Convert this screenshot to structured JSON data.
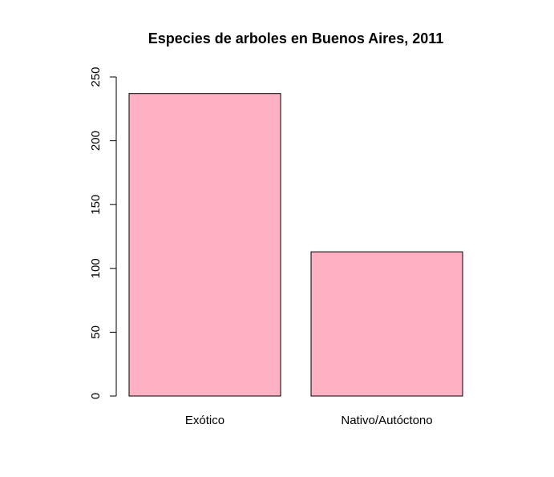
{
  "chart_data": {
    "type": "bar",
    "title": "Especies de arboles en Buenos Aires, 2011",
    "xlabel": "",
    "ylabel": "",
    "categories": [
      "Exótico",
      "Nativo/Autóctono"
    ],
    "values": [
      237,
      113
    ],
    "ylim": [
      0,
      250
    ],
    "yticks": [
      "0",
      "50",
      "100",
      "150",
      "200",
      "250"
    ],
    "grid": false,
    "legend": "none",
    "bar_color": "#ffb0c2",
    "bar_border_color": "#000000"
  }
}
